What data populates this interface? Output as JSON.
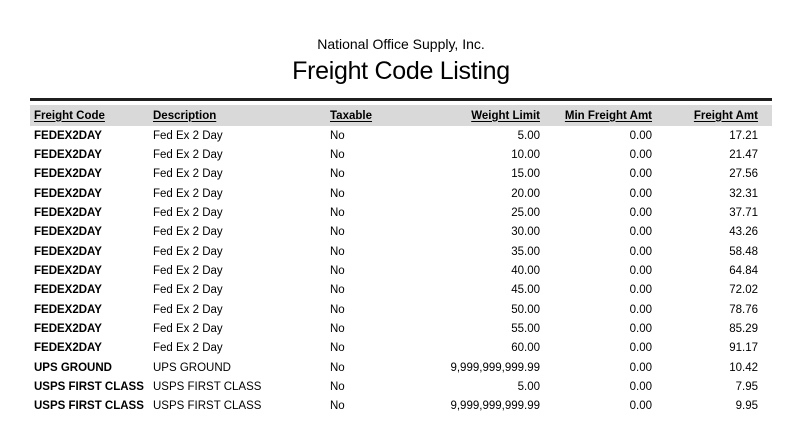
{
  "report": {
    "company": "National Office Supply, Inc.",
    "title": "Freight Code Listing"
  },
  "table": {
    "columns": [
      {
        "label": "Freight Code",
        "align": "left"
      },
      {
        "label": "Description",
        "align": "left"
      },
      {
        "label": "Taxable",
        "align": "left"
      },
      {
        "label": "Weight Limit",
        "align": "right"
      },
      {
        "label": "Min Freight Amt",
        "align": "right"
      },
      {
        "label": "Freight Amt",
        "align": "right"
      }
    ],
    "rows": [
      [
        "FEDEX2DAY",
        "Fed Ex 2 Day",
        "No",
        "5.00",
        "0.00",
        "17.21"
      ],
      [
        "FEDEX2DAY",
        "Fed Ex 2 Day",
        "No",
        "10.00",
        "0.00",
        "21.47"
      ],
      [
        "FEDEX2DAY",
        "Fed Ex 2 Day",
        "No",
        "15.00",
        "0.00",
        "27.56"
      ],
      [
        "FEDEX2DAY",
        "Fed Ex 2 Day",
        "No",
        "20.00",
        "0.00",
        "32.31"
      ],
      [
        "FEDEX2DAY",
        "Fed Ex 2 Day",
        "No",
        "25.00",
        "0.00",
        "37.71"
      ],
      [
        "FEDEX2DAY",
        "Fed Ex 2 Day",
        "No",
        "30.00",
        "0.00",
        "43.26"
      ],
      [
        "FEDEX2DAY",
        "Fed Ex 2 Day",
        "No",
        "35.00",
        "0.00",
        "58.48"
      ],
      [
        "FEDEX2DAY",
        "Fed Ex 2 Day",
        "No",
        "40.00",
        "0.00",
        "64.84"
      ],
      [
        "FEDEX2DAY",
        "Fed Ex 2 Day",
        "No",
        "45.00",
        "0.00",
        "72.02"
      ],
      [
        "FEDEX2DAY",
        "Fed Ex 2 Day",
        "No",
        "50.00",
        "0.00",
        "78.76"
      ],
      [
        "FEDEX2DAY",
        "Fed Ex 2 Day",
        "No",
        "55.00",
        "0.00",
        "85.29"
      ],
      [
        "FEDEX2DAY",
        "Fed Ex 2 Day",
        "No",
        "60.00",
        "0.00",
        "91.17"
      ],
      [
        "UPS GROUND",
        "UPS GROUND",
        "No",
        "9,999,999,999.99",
        "0.00",
        "10.42"
      ],
      [
        "USPS FIRST CLASS",
        "USPS FIRST CLASS",
        "No",
        "5.00",
        "0.00",
        "7.95"
      ],
      [
        "USPS FIRST CLASS",
        "USPS FIRST CLASS",
        "No",
        "9,999,999,999.99",
        "0.00",
        "9.95"
      ]
    ]
  },
  "colors": {
    "header_band": "#d9d9d9",
    "rule": "#1f1f1f",
    "text": "#000000"
  }
}
